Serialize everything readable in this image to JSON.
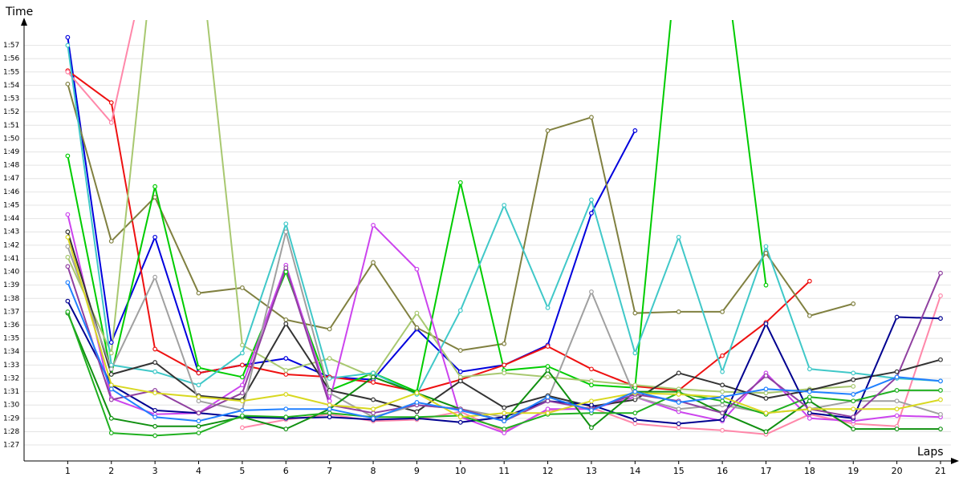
{
  "chart_data": {
    "type": "line",
    "y_label": "Time",
    "x_label": "Laps",
    "x": [
      1,
      2,
      3,
      4,
      5,
      6,
      7,
      8,
      9,
      10,
      11,
      12,
      13,
      14,
      15,
      16,
      17,
      18,
      19,
      20,
      21
    ],
    "xlim": [
      0,
      21
    ],
    "xticks": [
      1,
      2,
      3,
      4,
      5,
      6,
      7,
      8,
      9,
      10,
      11,
      12,
      13,
      14,
      15,
      16,
      17,
      18,
      19,
      20,
      21
    ],
    "ylim": [
      85.8,
      118.9
    ],
    "yticks": [
      {
        "value": 87,
        "label": "1:27"
      },
      {
        "value": 88,
        "label": "1:28"
      },
      {
        "value": 89,
        "label": "1:29"
      },
      {
        "value": 90,
        "label": "1:30"
      },
      {
        "value": 91,
        "label": "1:31"
      },
      {
        "value": 92,
        "label": "1:32"
      },
      {
        "value": 93,
        "label": "1:33"
      },
      {
        "value": 94,
        "label": "1:34"
      },
      {
        "value": 95,
        "label": "1:35"
      },
      {
        "value": 96,
        "label": "1:36"
      },
      {
        "value": 97,
        "label": "1:37"
      },
      {
        "value": 98,
        "label": "1:38"
      },
      {
        "value": 99,
        "label": "1:39"
      },
      {
        "value": 100,
        "label": "1:40"
      },
      {
        "value": 101,
        "label": "1:41"
      },
      {
        "value": 102,
        "label": "1:42"
      },
      {
        "value": 103,
        "label": "1:43"
      },
      {
        "value": 104,
        "label": "1:44"
      },
      {
        "value": 105,
        "label": "1:45"
      },
      {
        "value": 106,
        "label": "1:46"
      },
      {
        "value": 107,
        "label": "1:47"
      },
      {
        "value": 108,
        "label": "1:48"
      },
      {
        "value": 109,
        "label": "1:49"
      },
      {
        "value": 110,
        "label": "1:50"
      },
      {
        "value": 111,
        "label": "1:51"
      },
      {
        "value": 112,
        "label": "1:52"
      },
      {
        "value": 113,
        "label": "1:53"
      },
      {
        "value": 114,
        "label": "1:54"
      },
      {
        "value": 115,
        "label": "1:55"
      },
      {
        "value": 116,
        "label": "1:56"
      },
      {
        "value": 117,
        "label": "1:57"
      }
    ],
    "grid": true,
    "series": [
      {
        "color": "#0000dd",
        "values": [
          117.6,
          94.7,
          102.6,
          92.4,
          93.0,
          93.5,
          92.1,
          91.9,
          95.7,
          92.5,
          93.0,
          94.5,
          104.4,
          110.6,
          null,
          null,
          null,
          null,
          null,
          null,
          null
        ]
      },
      {
        "color": "#ee1111",
        "values": [
          115.1,
          112.7,
          94.2,
          92.4,
          93.0,
          92.3,
          92.1,
          91.7,
          91.0,
          91.9,
          93.0,
          94.4,
          92.7,
          91.4,
          91.1,
          93.7,
          96.2,
          99.3,
          null,
          null,
          null
        ]
      },
      {
        "color": "#ff88aa",
        "values": [
          115.0,
          111.2,
          126,
          null,
          88.3,
          88.9,
          89.3,
          88.8,
          88.9,
          89.5,
          88.0,
          89.6,
          89.8,
          88.6,
          88.3,
          88.1,
          87.8,
          89.3,
          88.6,
          88.4,
          98.2
        ]
      },
      {
        "color": "#808040",
        "values": [
          114.1,
          102.3,
          105.6,
          98.4,
          98.8,
          96.4,
          95.7,
          100.7,
          95.8,
          94.1,
          94.6,
          110.6,
          111.6,
          96.9,
          97.0,
          97.0,
          101.4,
          96.7,
          97.6,
          null,
          null
        ]
      },
      {
        "color": "#00cc00",
        "values": [
          108.7,
          92.3,
          106.4,
          92.8,
          92.1,
          100.0,
          91.1,
          92.4,
          91.0,
          106.7,
          92.6,
          92.9,
          91.5,
          91.3,
          125,
          125,
          99.0,
          null,
          null,
          null,
          null
        ]
      },
      {
        "color": "#a8c870",
        "values": [
          101.1,
          93.9,
          125,
          125,
          94.5,
          92.6,
          93.5,
          92.1,
          96.9,
          92.1,
          92.4,
          92.1,
          91.8,
          91.5,
          91.2,
          91.0,
          90.9,
          91.2,
          91.4,
          null,
          null
        ]
      },
      {
        "color": "#40c8c8",
        "values": [
          117.0,
          93.0,
          92.5,
          91.5,
          93.9,
          103.6,
          92.0,
          92.4,
          90.8,
          97.1,
          105.0,
          97.3,
          105.4,
          93.9,
          102.6,
          92.5,
          101.9,
          92.7,
          92.4,
          92.0,
          91.8
        ]
      },
      {
        "color": "#cc44ee",
        "values": [
          104.3,
          90.5,
          89.3,
          89.4,
          91.5,
          100.5,
          90.3,
          103.5,
          100.2,
          89.1,
          87.9,
          89.7,
          89.7,
          90.6,
          89.5,
          88.8,
          92.4,
          89.0,
          88.8,
          89.2,
          89.1
        ]
      },
      {
        "color": "#333333",
        "values": [
          103.0,
          92.3,
          93.2,
          90.7,
          90.4,
          96.1,
          91.1,
          90.4,
          89.5,
          91.8,
          89.8,
          90.7,
          89.9,
          90.4,
          92.4,
          91.5,
          90.5,
          91.1,
          91.9,
          92.5,
          93.4
        ]
      },
      {
        "color": "#a0a0a0",
        "values": [
          101.9,
          92.7,
          99.6,
          90.3,
          89.6,
          103.0,
          90.9,
          89.1,
          90.0,
          89.7,
          89.1,
          90.4,
          98.5,
          90.6,
          89.7,
          90.0,
          89.4,
          89.7,
          90.3,
          90.3,
          89.3
        ]
      },
      {
        "color": "#000090",
        "values": [
          97.8,
          91.5,
          89.6,
          89.4,
          89.1,
          89.0,
          89.1,
          88.9,
          89.0,
          88.7,
          89.1,
          90.3,
          90.0,
          88.9,
          88.6,
          88.9,
          96.1,
          89.4,
          89.0,
          96.6,
          96.5
        ]
      },
      {
        "color": "#109010",
        "values": [
          96.9,
          89.0,
          88.4,
          88.4,
          89.1,
          88.2,
          89.7,
          92.1,
          90.9,
          89.7,
          88.8,
          92.6,
          88.3,
          91.0,
          91.0,
          89.4,
          88.0,
          90.3,
          88.2,
          88.2,
          88.2
        ]
      },
      {
        "color": "#20b020",
        "values": [
          97.0,
          87.9,
          87.7,
          87.9,
          89.2,
          89.1,
          89.4,
          89.1,
          89.1,
          89.2,
          88.2,
          89.3,
          89.4,
          89.4,
          90.9,
          90.3,
          89.3,
          90.6,
          90.3,
          91.1,
          91.1
        ]
      },
      {
        "color": "#9040a0",
        "values": [
          100.4,
          90.4,
          91.1,
          89.4,
          90.9,
          100.3,
          90.0,
          89.4,
          90.0,
          89.7,
          88.8,
          90.3,
          89.7,
          90.8,
          90.3,
          89.4,
          92.2,
          89.7,
          89.1,
          92.1,
          99.9
        ]
      },
      {
        "color": "#d8d820",
        "values": [
          102.6,
          91.5,
          90.9,
          90.6,
          90.3,
          90.8,
          90.0,
          89.7,
          90.9,
          89.1,
          89.4,
          89.4,
          90.3,
          90.9,
          90.8,
          90.6,
          89.4,
          89.7,
          89.7,
          89.7,
          90.4
        ]
      },
      {
        "color": "#2080ff",
        "values": [
          99.2,
          91.2,
          89.1,
          88.8,
          89.6,
          89.7,
          89.7,
          89.0,
          90.2,
          89.6,
          88.8,
          90.6,
          89.6,
          91.0,
          90.2,
          90.6,
          91.2,
          91.0,
          90.8,
          92.1,
          91.8
        ]
      }
    ]
  }
}
